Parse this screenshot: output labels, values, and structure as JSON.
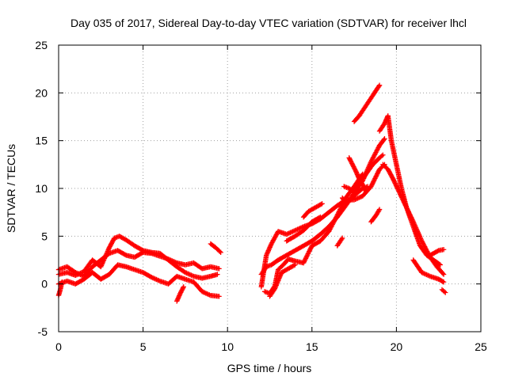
{
  "chart_data": {
    "type": "scatter",
    "title": "Day 035 of 2017, Sidereal Day-to-day VTEC variation (SDTVAR) for receiver lhcl",
    "xlabel": "GPS time / hours",
    "ylabel": "SDTVAR / TECUs",
    "xlim": [
      0,
      25
    ],
    "ylim": [
      -5,
      25
    ],
    "xticks": [
      "0",
      "5",
      "10",
      "15",
      "20",
      "25"
    ],
    "yticks": [
      "-5",
      "0",
      "5",
      "10",
      "15",
      "20",
      "25"
    ],
    "grid": true,
    "marker": "plus",
    "series": [
      {
        "name": "SDTVAR",
        "color": "#ff0000",
        "tracks": [
          {
            "x": [
              0.0,
              0.5,
              1.0,
              1.5,
              2.0,
              2.5,
              3.0,
              3.5,
              4.0,
              4.5,
              5.0,
              5.5,
              6.0,
              6.5,
              7.0,
              7.5,
              8.0,
              8.5,
              9.0,
              9.5
            ],
            "y": [
              1.5,
              1.8,
              1.2,
              0.8,
              1.8,
              2.5,
              3.2,
              3.5,
              3.0,
              2.8,
              3.3,
              3.2,
              2.9,
              2.6,
              2.2,
              2.0,
              2.2,
              1.6,
              1.8,
              1.6
            ]
          },
          {
            "x": [
              0.0,
              0.5,
              1.0,
              1.5,
              2.0,
              2.5,
              3.0,
              3.5,
              4.0,
              4.5,
              5.0,
              5.5,
              6.0,
              6.5,
              7.0,
              7.5,
              8.0,
              8.5,
              9.0,
              9.5
            ],
            "y": [
              0.0,
              0.3,
              0.0,
              0.5,
              1.2,
              0.5,
              1.0,
              2.0,
              1.8,
              1.5,
              1.2,
              0.7,
              0.3,
              0.0,
              0.8,
              0.5,
              0.2,
              -0.8,
              -1.2,
              -1.3
            ]
          },
          {
            "x": [
              0.0,
              0.5,
              1.0,
              1.5,
              2.0,
              2.5,
              3.0,
              3.3,
              3.6,
              4.0,
              4.5,
              5.0,
              5.5,
              6.0,
              6.5,
              7.0,
              7.5,
              8.0,
              8.5,
              9.0,
              9.4
            ],
            "y": [
              1.0,
              1.2,
              0.9,
              1.3,
              2.5,
              1.8,
              3.8,
              4.8,
              5.0,
              4.6,
              4.0,
              3.5,
              3.3,
              3.2,
              2.5,
              1.8,
              1.2,
              0.8,
              0.6,
              0.8,
              1.0
            ]
          },
          {
            "x": [
              0.0,
              0.1,
              0.2
            ],
            "y": [
              -1.2,
              -0.6,
              0.2
            ]
          },
          {
            "x": [
              7.0,
              7.2,
              7.4
            ],
            "y": [
              -1.8,
              -1.0,
              -0.3
            ]
          },
          {
            "x": [
              9.0,
              9.3,
              9.6
            ],
            "y": [
              4.2,
              3.8,
              3.3
            ]
          },
          {
            "x": [
              12.0,
              12.3,
              12.6,
              13.0,
              13.5,
              14.0,
              14.5,
              15.0,
              15.5,
              16.0,
              16.5,
              17.0,
              17.5,
              18.0,
              18.5,
              19.0,
              19.3
            ],
            "y": [
              -0.3,
              3.0,
              4.2,
              5.5,
              5.2,
              5.6,
              6.0,
              6.3,
              6.8,
              7.5,
              8.2,
              8.8,
              8.8,
              9.2,
              10.2,
              12.0,
              12.5
            ]
          },
          {
            "x": [
              12.0,
              12.3,
              12.6,
              13.0,
              13.5,
              14.0,
              14.5,
              15.0,
              15.5,
              16.0,
              16.5,
              17.0,
              17.5,
              18.0,
              18.5,
              19.0,
              19.3
            ],
            "y": [
              1.0,
              1.8,
              2.0,
              2.5,
              3.0,
              3.5,
              4.0,
              4.5,
              5.2,
              6.0,
              7.0,
              8.2,
              9.5,
              10.8,
              12.8,
              14.5,
              15.2
            ]
          },
          {
            "x": [
              12.2,
              12.5,
              12.8,
              13.0,
              13.3,
              13.6,
              14.0,
              14.5,
              15.0,
              15.5,
              16.0,
              16.5,
              17.0,
              17.5,
              18.0
            ],
            "y": [
              -0.8,
              -1.0,
              -0.2,
              1.5,
              2.0,
              2.6,
              2.4,
              2.2,
              4.0,
              4.5,
              5.5,
              7.2,
              9.0,
              10.2,
              11.5
            ]
          },
          {
            "x": [
              12.5,
              12.8,
              13.2,
              13.6,
              14.0
            ],
            "y": [
              -1.3,
              -0.5,
              1.2,
              1.6,
              2.0
            ]
          },
          {
            "x": [
              13.5,
              14.0,
              14.5,
              15.0,
              15.5
            ],
            "y": [
              4.5,
              5.0,
              5.6,
              6.5,
              7.0
            ]
          },
          {
            "x": [
              14.5,
              14.8,
              15.2,
              15.6
            ],
            "y": [
              7.0,
              7.6,
              8.0,
              8.4
            ]
          },
          {
            "x": [
              16.5,
              16.8
            ],
            "y": [
              4.0,
              4.8
            ]
          },
          {
            "x": [
              16.8,
              17.0,
              17.3,
              17.6,
              18.0,
              18.3
            ],
            "y": [
              9.0,
              8.5,
              8.8,
              9.4,
              10.0,
              10.2
            ]
          },
          {
            "x": [
              16.9,
              17.2,
              17.5,
              17.8,
              18.2,
              18.6,
              19.0,
              19.2
            ],
            "y": [
              10.2,
              10.0,
              9.6,
              10.5,
              11.5,
              12.5,
              13.2,
              13.5
            ]
          },
          {
            "x": [
              17.2,
              17.4,
              17.6,
              17.8,
              18.0,
              18.2
            ],
            "y": [
              13.2,
              12.5,
              11.8,
              11.0,
              10.4,
              9.7
            ]
          },
          {
            "x": [
              17.5,
              17.8,
              18.1,
              18.4,
              18.7,
              19.0
            ],
            "y": [
              17.0,
              17.6,
              18.4,
              19.2,
              20.0,
              20.8
            ]
          },
          {
            "x": [
              19.0,
              19.3,
              19.5,
              19.7,
              20.0,
              20.3,
              20.6,
              21.0,
              21.4,
              21.8,
              22.2,
              22.6
            ],
            "y": [
              16.0,
              16.8,
              17.6,
              15.0,
              12.5,
              10.0,
              8.0,
              6.0,
              4.0,
              3.0,
              2.5,
              2.0
            ]
          },
          {
            "x": [
              19.2,
              19.5,
              19.8,
              20.2,
              20.6,
              21.0,
              21.5,
              22.0,
              22.4,
              22.8
            ],
            "y": [
              12.5,
              12.0,
              11.0,
              9.5,
              8.0,
              6.5,
              4.5,
              2.8,
              1.8,
              1.0
            ]
          },
          {
            "x": [
              18.5,
              18.8,
              19.0
            ],
            "y": [
              6.5,
              7.2,
              7.8
            ]
          },
          {
            "x": [
              21.0,
              21.5,
              22.0,
              22.5,
              22.8
            ],
            "y": [
              2.5,
              1.2,
              0.8,
              0.5,
              0.2
            ]
          },
          {
            "x": [
              22.7,
              22.9
            ],
            "y": [
              -0.6,
              -0.9
            ]
          },
          {
            "x": [
              22.0,
              22.5,
              22.8
            ],
            "y": [
              3.0,
              3.5,
              3.6
            ]
          }
        ]
      }
    ]
  }
}
